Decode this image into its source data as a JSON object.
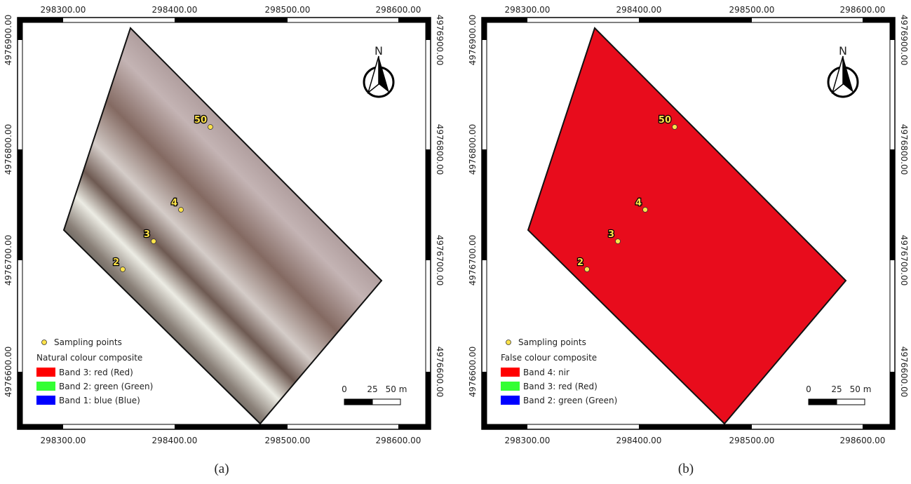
{
  "panels": [
    {
      "caption": "(a)",
      "x_ticks": [
        "298300.00",
        "298400.00",
        "298500.00",
        "298600.00"
      ],
      "y_ticks": [
        "4976900.00",
        "4976800.00",
        "4976700.00",
        "4976600.00"
      ],
      "north": "N",
      "points": [
        {
          "label": "50"
        },
        {
          "label": "4"
        },
        {
          "label": "3"
        },
        {
          "label": "2"
        }
      ],
      "legend": {
        "points_label": "Sampling points",
        "title": "Natural colour composite",
        "bands": [
          {
            "label": "Band 3: red (Red)",
            "color": "#ff0000"
          },
          {
            "label": "Band 2: green (Green)",
            "color": "#33ff33"
          },
          {
            "label": "Band 1: blue (Blue)",
            "color": "#0000ff"
          }
        ]
      },
      "scale": [
        "0",
        "25",
        "50 m"
      ]
    },
    {
      "caption": "(b)",
      "x_ticks": [
        "298300.00",
        "298400.00",
        "298500.00",
        "298600.00"
      ],
      "y_ticks": [
        "4976900.00",
        "4976800.00",
        "4976700.00",
        "4976600.00"
      ],
      "north": "N",
      "points": [
        {
          "label": "50"
        },
        {
          "label": "4"
        },
        {
          "label": "3"
        },
        {
          "label": "2"
        }
      ],
      "legend": {
        "points_label": "Sampling points",
        "title": "False colour composite",
        "bands": [
          {
            "label": "Band 4: nir",
            "color": "#ff0000"
          },
          {
            "label": "Band 3: red (Red)",
            "color": "#33ff33"
          },
          {
            "label": "Band 2: green (Green)",
            "color": "#0000ff"
          }
        ]
      },
      "scale": [
        "0",
        "25",
        "50 m"
      ]
    }
  ]
}
